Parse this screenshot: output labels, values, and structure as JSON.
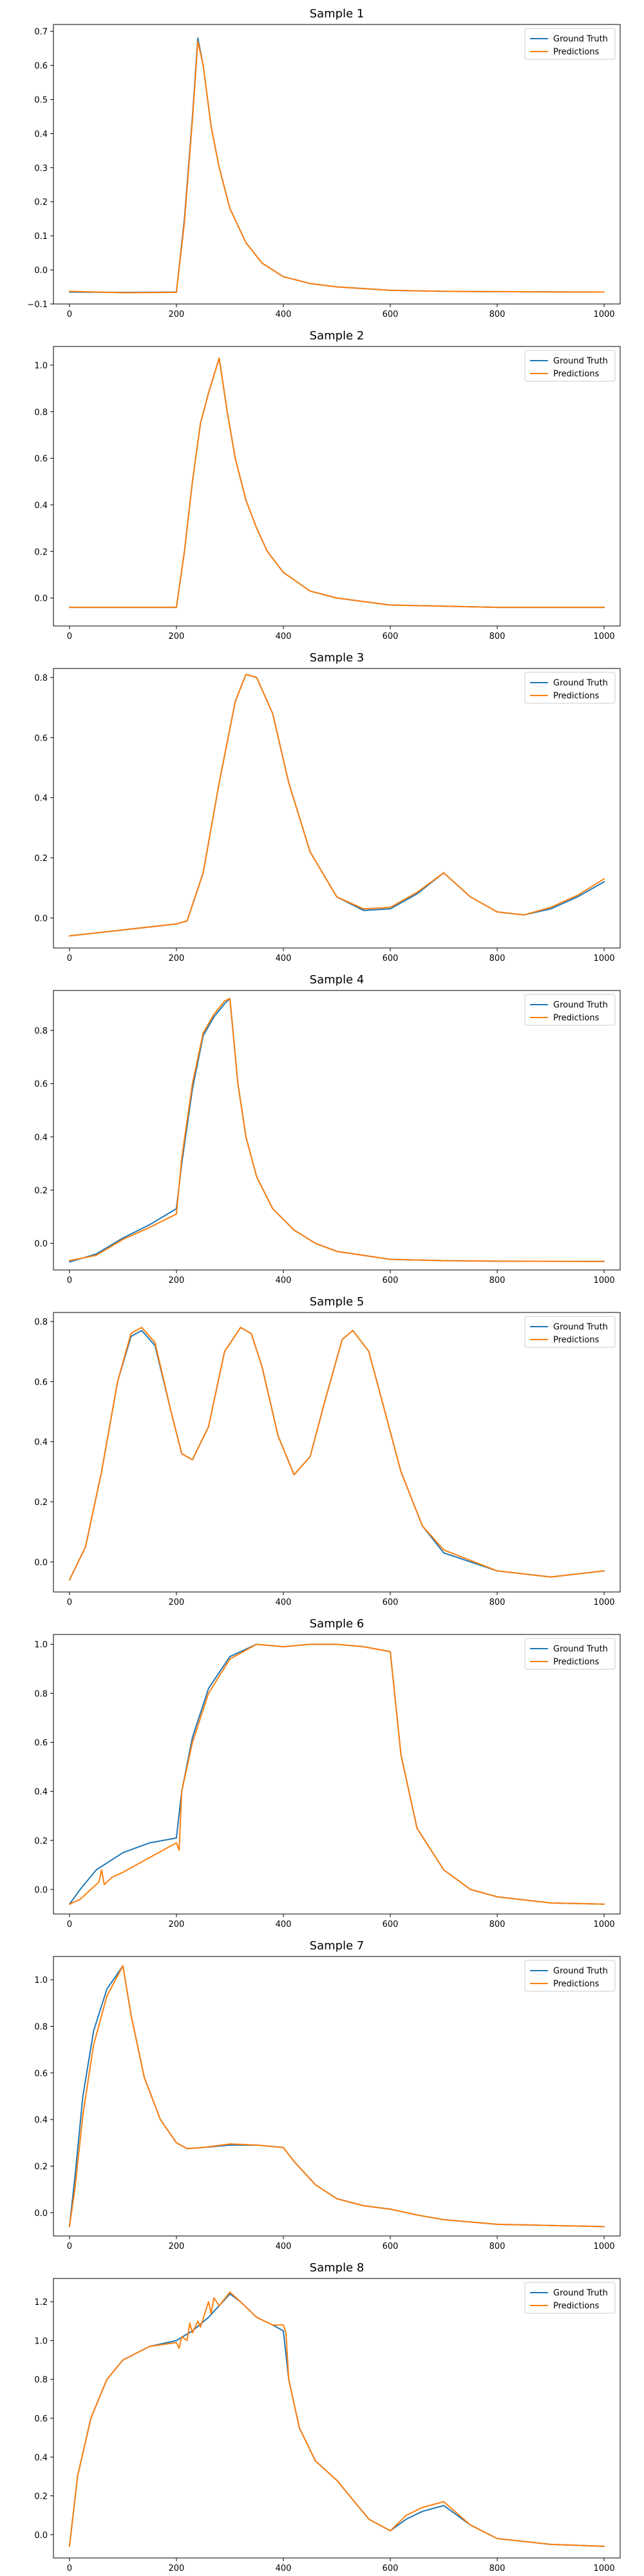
{
  "colors": {
    "ground_truth": "#1f77b4",
    "predictions": "#ff7f0e"
  },
  "legend": {
    "placement": "top-right",
    "entries": [
      "Ground Truth",
      "Predictions"
    ]
  },
  "chart_data": [
    {
      "type": "line",
      "title": "Sample 1",
      "xlabel": "",
      "ylabel": "",
      "xlim": [
        -30,
        1030
      ],
      "ylim": [
        -0.1,
        0.72
      ],
      "xticks": [
        0,
        200,
        400,
        600,
        800,
        1000
      ],
      "yticks": [
        -0.1,
        0.0,
        0.1,
        0.2,
        0.3,
        0.4,
        0.5,
        0.6,
        0.7
      ],
      "grid": false,
      "series": [
        {
          "name": "Ground Truth",
          "x": [
            0,
            100,
            200,
            215,
            230,
            240,
            250,
            265,
            280,
            300,
            330,
            360,
            400,
            450,
            500,
            600,
            700,
            800,
            1000
          ],
          "y": [
            -0.065,
            -0.066,
            -0.065,
            0.15,
            0.45,
            0.68,
            0.6,
            0.42,
            0.3,
            0.18,
            0.08,
            0.02,
            -0.02,
            -0.04,
            -0.05,
            -0.06,
            -0.063,
            -0.064,
            -0.065
          ]
        },
        {
          "name": "Predictions",
          "x": [
            0,
            100,
            200,
            215,
            230,
            240,
            250,
            265,
            280,
            300,
            330,
            360,
            400,
            450,
            500,
            600,
            700,
            800,
            1000
          ],
          "y": [
            -0.063,
            -0.067,
            -0.066,
            0.14,
            0.44,
            0.67,
            0.6,
            0.42,
            0.3,
            0.18,
            0.08,
            0.02,
            -0.02,
            -0.04,
            -0.05,
            -0.06,
            -0.063,
            -0.064,
            -0.065
          ]
        }
      ]
    },
    {
      "type": "line",
      "title": "Sample 2",
      "xlabel": "",
      "ylabel": "",
      "xlim": [
        -30,
        1030
      ],
      "ylim": [
        -0.12,
        1.08
      ],
      "xticks": [
        0,
        200,
        400,
        600,
        800,
        1000
      ],
      "yticks": [
        0.0,
        0.2,
        0.4,
        0.6,
        0.8,
        1.0
      ],
      "grid": false,
      "series": [
        {
          "name": "Ground Truth",
          "x": [
            0,
            100,
            200,
            215,
            230,
            245,
            260,
            280,
            295,
            310,
            330,
            350,
            370,
            400,
            450,
            500,
            600,
            700,
            800,
            1000
          ],
          "y": [
            -0.04,
            -0.04,
            -0.04,
            0.2,
            0.5,
            0.75,
            0.88,
            1.03,
            0.8,
            0.6,
            0.42,
            0.3,
            0.2,
            0.11,
            0.03,
            0.0,
            -0.03,
            -0.035,
            -0.04,
            -0.04
          ]
        },
        {
          "name": "Predictions",
          "x": [
            0,
            100,
            200,
            215,
            230,
            245,
            260,
            280,
            295,
            310,
            330,
            350,
            370,
            400,
            450,
            500,
            600,
            700,
            800,
            1000
          ],
          "y": [
            -0.04,
            -0.04,
            -0.04,
            0.2,
            0.5,
            0.75,
            0.88,
            1.03,
            0.8,
            0.6,
            0.42,
            0.3,
            0.2,
            0.11,
            0.03,
            0.0,
            -0.03,
            -0.035,
            -0.04,
            -0.04
          ]
        }
      ]
    },
    {
      "type": "line",
      "title": "Sample 3",
      "xlabel": "",
      "ylabel": "",
      "xlim": [
        -30,
        1030
      ],
      "ylim": [
        -0.1,
        0.83
      ],
      "xticks": [
        0,
        200,
        400,
        600,
        800,
        1000
      ],
      "yticks": [
        0.0,
        0.2,
        0.4,
        0.6,
        0.8
      ],
      "grid": false,
      "series": [
        {
          "name": "Ground Truth",
          "x": [
            0,
            100,
            200,
            220,
            250,
            280,
            310,
            330,
            350,
            380,
            410,
            450,
            500,
            550,
            600,
            650,
            700,
            750,
            800,
            850,
            900,
            950,
            1000
          ],
          "y": [
            -0.06,
            -0.04,
            -0.02,
            -0.01,
            0.15,
            0.45,
            0.72,
            0.81,
            0.8,
            0.68,
            0.45,
            0.22,
            0.07,
            0.025,
            0.03,
            0.08,
            0.15,
            0.07,
            0.02,
            0.01,
            0.03,
            0.07,
            0.12
          ]
        },
        {
          "name": "Predictions",
          "x": [
            0,
            100,
            200,
            220,
            250,
            280,
            310,
            330,
            350,
            380,
            410,
            450,
            500,
            550,
            600,
            650,
            700,
            750,
            800,
            850,
            900,
            950,
            1000
          ],
          "y": [
            -0.06,
            -0.04,
            -0.02,
            -0.01,
            0.15,
            0.45,
            0.72,
            0.81,
            0.8,
            0.68,
            0.45,
            0.22,
            0.07,
            0.03,
            0.035,
            0.085,
            0.15,
            0.07,
            0.02,
            0.01,
            0.035,
            0.075,
            0.13
          ]
        }
      ]
    },
    {
      "type": "line",
      "title": "Sample 4",
      "xlabel": "",
      "ylabel": "",
      "xlim": [
        -30,
        1030
      ],
      "ylim": [
        -0.1,
        0.95
      ],
      "xticks": [
        0,
        200,
        400,
        600,
        800,
        1000
      ],
      "yticks": [
        0.0,
        0.2,
        0.4,
        0.6,
        0.8
      ],
      "grid": false,
      "series": [
        {
          "name": "Ground Truth",
          "x": [
            0,
            50,
            100,
            150,
            200,
            210,
            230,
            250,
            270,
            290,
            300,
            315,
            330,
            350,
            380,
            420,
            460,
            500,
            600,
            700,
            800,
            1000
          ],
          "y": [
            -0.07,
            -0.04,
            0.02,
            0.07,
            0.13,
            0.3,
            0.58,
            0.78,
            0.85,
            0.9,
            0.92,
            0.6,
            0.4,
            0.25,
            0.13,
            0.05,
            0.0,
            -0.03,
            -0.06,
            -0.065,
            -0.067,
            -0.068
          ]
        },
        {
          "name": "Predictions",
          "x": [
            0,
            50,
            100,
            150,
            200,
            210,
            230,
            250,
            270,
            290,
            300,
            315,
            330,
            350,
            380,
            420,
            460,
            500,
            600,
            700,
            800,
            1000
          ],
          "y": [
            -0.065,
            -0.045,
            0.015,
            0.06,
            0.11,
            0.32,
            0.6,
            0.79,
            0.86,
            0.91,
            0.92,
            0.6,
            0.4,
            0.25,
            0.13,
            0.05,
            0.0,
            -0.03,
            -0.06,
            -0.065,
            -0.067,
            -0.068
          ]
        }
      ]
    },
    {
      "type": "line",
      "title": "Sample 5",
      "xlabel": "",
      "ylabel": "",
      "xlim": [
        -30,
        1030
      ],
      "ylim": [
        -0.1,
        0.83
      ],
      "xticks": [
        0,
        200,
        400,
        600,
        800,
        1000
      ],
      "yticks": [
        0.0,
        0.2,
        0.4,
        0.6,
        0.8
      ],
      "grid": false,
      "series": [
        {
          "name": "Ground Truth",
          "x": [
            0,
            30,
            60,
            90,
            115,
            135,
            160,
            190,
            210,
            230,
            260,
            290,
            320,
            340,
            360,
            390,
            420,
            450,
            480,
            510,
            530,
            560,
            590,
            620,
            660,
            700,
            800,
            900,
            1000
          ],
          "y": [
            -0.06,
            0.05,
            0.3,
            0.6,
            0.75,
            0.77,
            0.72,
            0.5,
            0.36,
            0.34,
            0.45,
            0.7,
            0.78,
            0.76,
            0.65,
            0.42,
            0.29,
            0.35,
            0.55,
            0.74,
            0.77,
            0.7,
            0.5,
            0.3,
            0.12,
            0.03,
            -0.03,
            -0.05,
            -0.03
          ]
        },
        {
          "name": "Predictions",
          "x": [
            0,
            30,
            60,
            90,
            115,
            135,
            160,
            190,
            210,
            230,
            260,
            290,
            320,
            340,
            360,
            390,
            420,
            450,
            480,
            510,
            530,
            560,
            590,
            620,
            660,
            700,
            800,
            900,
            1000
          ],
          "y": [
            -0.06,
            0.05,
            0.3,
            0.6,
            0.76,
            0.78,
            0.73,
            0.5,
            0.36,
            0.34,
            0.45,
            0.7,
            0.78,
            0.76,
            0.65,
            0.42,
            0.29,
            0.35,
            0.55,
            0.74,
            0.77,
            0.7,
            0.5,
            0.3,
            0.12,
            0.04,
            -0.03,
            -0.05,
            -0.03
          ]
        }
      ]
    },
    {
      "type": "line",
      "title": "Sample 6",
      "xlabel": "",
      "ylabel": "",
      "xlim": [
        -30,
        1030
      ],
      "ylim": [
        -0.1,
        1.04
      ],
      "xticks": [
        0,
        200,
        400,
        600,
        800,
        1000
      ],
      "yticks": [
        0.0,
        0.2,
        0.4,
        0.6,
        0.8,
        1.0
      ],
      "grid": false,
      "series": [
        {
          "name": "Ground Truth",
          "x": [
            0,
            20,
            50,
            100,
            150,
            200,
            210,
            230,
            260,
            300,
            350,
            400,
            450,
            500,
            550,
            600,
            620,
            650,
            700,
            750,
            800,
            900,
            1000
          ],
          "y": [
            -0.06,
            0.0,
            0.08,
            0.15,
            0.19,
            0.21,
            0.4,
            0.62,
            0.82,
            0.95,
            1.0,
            0.99,
            1.0,
            1.0,
            0.99,
            0.97,
            0.55,
            0.25,
            0.08,
            0.0,
            -0.03,
            -0.055,
            -0.06
          ]
        },
        {
          "name": "Predictions",
          "x": [
            0,
            20,
            40,
            55,
            60,
            65,
            80,
            100,
            150,
            200,
            205,
            210,
            230,
            260,
            300,
            350,
            400,
            450,
            500,
            550,
            600,
            620,
            650,
            700,
            750,
            800,
            900,
            1000
          ],
          "y": [
            -0.06,
            -0.04,
            0.0,
            0.03,
            0.08,
            0.02,
            0.05,
            0.07,
            0.13,
            0.19,
            0.16,
            0.4,
            0.6,
            0.8,
            0.94,
            1.0,
            0.99,
            1.0,
            1.0,
            0.99,
            0.97,
            0.55,
            0.25,
            0.08,
            0.0,
            -0.03,
            -0.055,
            -0.06
          ]
        }
      ]
    },
    {
      "type": "line",
      "title": "Sample 7",
      "xlabel": "",
      "ylabel": "",
      "xlim": [
        -30,
        1030
      ],
      "ylim": [
        -0.1,
        1.1
      ],
      "xticks": [
        0,
        200,
        400,
        600,
        800,
        1000
      ],
      "yticks": [
        0.0,
        0.2,
        0.4,
        0.6,
        0.8,
        1.0
      ],
      "grid": false,
      "series": [
        {
          "name": "Ground Truth",
          "x": [
            0,
            10,
            25,
            45,
            70,
            100,
            115,
            140,
            170,
            200,
            220,
            250,
            300,
            350,
            400,
            420,
            460,
            500,
            550,
            600,
            650,
            700,
            800,
            1000
          ],
          "y": [
            -0.06,
            0.15,
            0.5,
            0.78,
            0.96,
            1.06,
            0.85,
            0.58,
            0.4,
            0.3,
            0.275,
            0.28,
            0.29,
            0.29,
            0.28,
            0.22,
            0.12,
            0.06,
            0.03,
            0.015,
            -0.01,
            -0.03,
            -0.05,
            -0.06
          ]
        },
        {
          "name": "Predictions",
          "x": [
            0,
            10,
            25,
            45,
            70,
            100,
            115,
            140,
            170,
            200,
            220,
            250,
            300,
            350,
            400,
            420,
            460,
            500,
            550,
            600,
            650,
            700,
            800,
            1000
          ],
          "y": [
            -0.06,
            0.1,
            0.42,
            0.72,
            0.93,
            1.06,
            0.85,
            0.58,
            0.4,
            0.3,
            0.275,
            0.28,
            0.295,
            0.29,
            0.28,
            0.22,
            0.12,
            0.06,
            0.03,
            0.015,
            -0.01,
            -0.03,
            -0.05,
            -0.06
          ]
        }
      ]
    },
    {
      "type": "line",
      "title": "Sample 8",
      "xlabel": "",
      "ylabel": "",
      "xlim": [
        -30,
        1030
      ],
      "ylim": [
        -0.12,
        1.32
      ],
      "xticks": [
        0,
        200,
        400,
        600,
        800,
        1000
      ],
      "yticks": [
        0.0,
        0.2,
        0.4,
        0.6,
        0.8,
        1.0,
        1.2
      ],
      "grid": false,
      "series": [
        {
          "name": "Ground Truth",
          "x": [
            0,
            15,
            40,
            70,
            100,
            150,
            200,
            230,
            260,
            280,
            300,
            320,
            350,
            380,
            400,
            410,
            430,
            460,
            500,
            530,
            560,
            600,
            630,
            660,
            700,
            750,
            800,
            900,
            1000
          ],
          "y": [
            -0.06,
            0.3,
            0.6,
            0.8,
            0.9,
            0.97,
            1.0,
            1.05,
            1.12,
            1.18,
            1.24,
            1.2,
            1.12,
            1.08,
            1.05,
            0.8,
            0.55,
            0.38,
            0.28,
            0.18,
            0.08,
            0.02,
            0.08,
            0.12,
            0.15,
            0.05,
            -0.02,
            -0.05,
            -0.06
          ]
        },
        {
          "name": "Predictions",
          "x": [
            0,
            15,
            40,
            70,
            100,
            150,
            200,
            205,
            210,
            220,
            225,
            230,
            240,
            245,
            260,
            265,
            270,
            280,
            300,
            320,
            350,
            380,
            400,
            405,
            410,
            430,
            460,
            500,
            530,
            560,
            600,
            630,
            660,
            700,
            750,
            800,
            900,
            1000
          ],
          "y": [
            -0.06,
            0.3,
            0.6,
            0.8,
            0.9,
            0.97,
            0.99,
            0.96,
            1.02,
            1.0,
            1.09,
            1.04,
            1.1,
            1.07,
            1.2,
            1.14,
            1.22,
            1.18,
            1.25,
            1.2,
            1.12,
            1.08,
            1.08,
            1.04,
            0.8,
            0.55,
            0.38,
            0.28,
            0.18,
            0.08,
            0.02,
            0.1,
            0.14,
            0.17,
            0.05,
            -0.02,
            -0.05,
            -0.06
          ]
        }
      ]
    }
  ]
}
